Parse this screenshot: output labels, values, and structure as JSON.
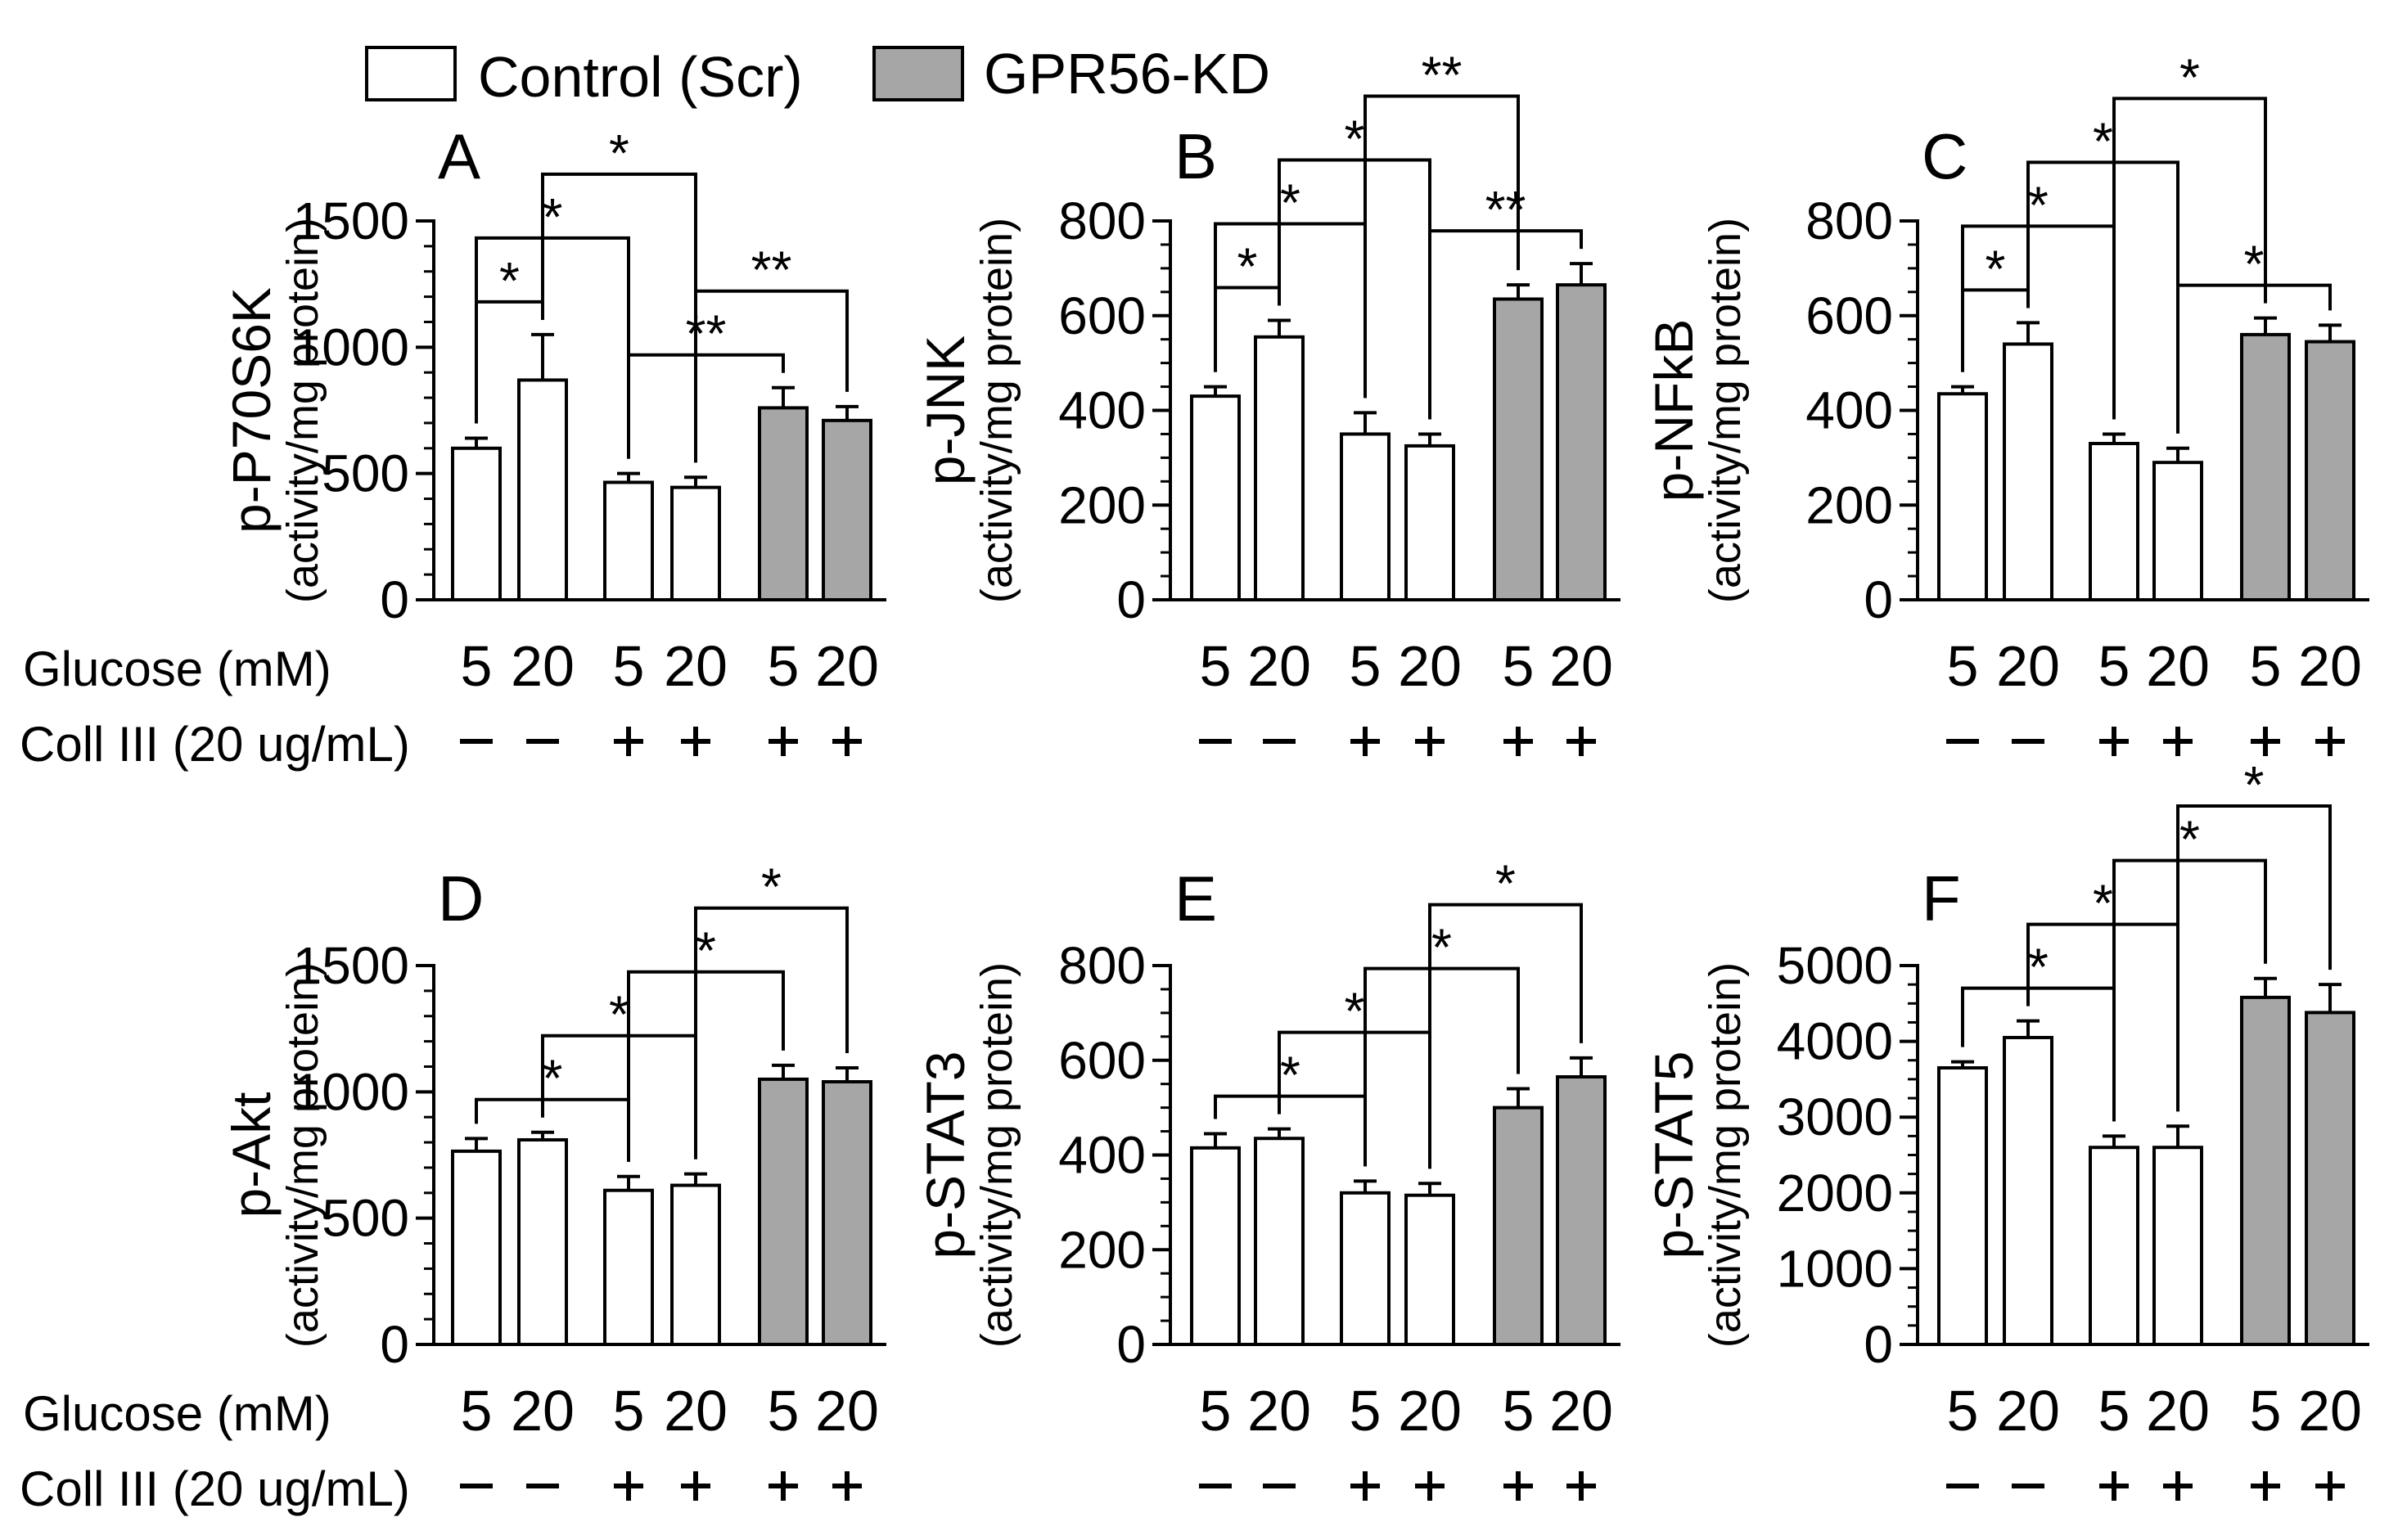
{
  "legend": [
    {
      "label": "Control (Scr)",
      "color": "#ffffff"
    },
    {
      "label": "GPR56-KD",
      "color": "#a6a6a6"
    }
  ],
  "row_labels": {
    "glucose": "Glucose (mM)",
    "coll": "Coll III (20 ug/mL)"
  },
  "chart_data": [
    {
      "type": "bar",
      "panel": "A",
      "ylabel": "p-P70S6K",
      "ylabel2": "(activity/mg protein)",
      "ylim": [
        0,
        1500
      ],
      "ticks": [
        0,
        500,
        1000,
        1500
      ],
      "minor": 100,
      "glucose": [
        "5",
        "20",
        "5",
        "20",
        "5",
        "20"
      ],
      "coll": [
        "–",
        "–",
        "+",
        "+",
        "+",
        "+"
      ],
      "values": [
        600,
        870,
        465,
        445,
        760,
        710
      ],
      "errors": [
        40,
        180,
        35,
        40,
        80,
        55
      ],
      "series": [
        "Control (Scr)",
        "Control (Scr)",
        "Control (Scr)",
        "Control (Scr)",
        "GPR56-KD",
        "GPR56-KD"
      ],
      "sig": [
        {
          "from": 0,
          "to": 1,
          "label": "*"
        },
        {
          "from": 0,
          "to": 2,
          "label": "*"
        },
        {
          "from": 1,
          "to": 3,
          "label": "*"
        },
        {
          "from": 2,
          "to": 4,
          "label": "**"
        },
        {
          "from": 3,
          "to": 5,
          "label": "**"
        }
      ]
    },
    {
      "type": "bar",
      "panel": "B",
      "ylabel": "p-JNK",
      "ylabel2": "(activity/mg protein)",
      "ylim": [
        0,
        800
      ],
      "ticks": [
        0,
        200,
        400,
        600,
        800
      ],
      "minor": 50,
      "glucose": [
        "5",
        "20",
        "5",
        "20",
        "5",
        "20"
      ],
      "coll": [
        "–",
        "–",
        "+",
        "+",
        "+",
        "+"
      ],
      "values": [
        430,
        555,
        350,
        325,
        635,
        665
      ],
      "errors": [
        20,
        35,
        45,
        25,
        30,
        45
      ],
      "series": [
        "Control (Scr)",
        "Control (Scr)",
        "Control (Scr)",
        "Control (Scr)",
        "GPR56-KD",
        "GPR56-KD"
      ],
      "sig": [
        {
          "from": 0,
          "to": 1,
          "label": "*"
        },
        {
          "from": 0,
          "to": 2,
          "label": "*"
        },
        {
          "from": 1,
          "to": 3,
          "label": "*"
        },
        {
          "from": 3,
          "to": 5,
          "label": "**"
        },
        {
          "from": 2,
          "to": 4,
          "label": "**"
        }
      ]
    },
    {
      "type": "bar",
      "panel": "C",
      "ylabel": "p-NFkB",
      "ylabel2": "(activity/mg protein)",
      "ylim": [
        0,
        800
      ],
      "ticks": [
        0,
        200,
        400,
        600,
        800
      ],
      "minor": 50,
      "glucose": [
        "5",
        "20",
        "5",
        "20",
        "5",
        "20"
      ],
      "coll": [
        "–",
        "–",
        "+",
        "+",
        "+",
        "+"
      ],
      "values": [
        435,
        540,
        330,
        290,
        560,
        545
      ],
      "errors": [
        15,
        45,
        20,
        30,
        35,
        35
      ],
      "series": [
        "Control (Scr)",
        "Control (Scr)",
        "Control (Scr)",
        "Control (Scr)",
        "GPR56-KD",
        "GPR56-KD"
      ],
      "sig": [
        {
          "from": 0,
          "to": 1,
          "label": "*"
        },
        {
          "from": 0,
          "to": 2,
          "label": "*"
        },
        {
          "from": 1,
          "to": 3,
          "label": "*"
        },
        {
          "from": 2,
          "to": 4,
          "label": "*"
        },
        {
          "from": 3,
          "to": 5,
          "label": "*"
        }
      ]
    },
    {
      "type": "bar",
      "panel": "D",
      "ylabel": "p-Akt",
      "ylabel2": "(activity/mg protein)",
      "ylim": [
        0,
        1500
      ],
      "ticks": [
        0,
        500,
        1000,
        1500
      ],
      "minor": 100,
      "glucose": [
        "5",
        "20",
        "5",
        "20",
        "5",
        "20"
      ],
      "coll": [
        "–",
        "–",
        "+",
        "+",
        "+",
        "+"
      ],
      "values": [
        765,
        810,
        610,
        630,
        1050,
        1040
      ],
      "errors": [
        50,
        30,
        55,
        45,
        55,
        55
      ],
      "series": [
        "Control (Scr)",
        "Control (Scr)",
        "Control (Scr)",
        "Control (Scr)",
        "GPR56-KD",
        "GPR56-KD"
      ],
      "sig": [
        {
          "from": 0,
          "to": 2,
          "label": "*"
        },
        {
          "from": 1,
          "to": 3,
          "label": "*"
        },
        {
          "from": 2,
          "to": 4,
          "label": "*"
        },
        {
          "from": 3,
          "to": 5,
          "label": "*"
        }
      ]
    },
    {
      "type": "bar",
      "panel": "E",
      "ylabel": "p-STAT3",
      "ylabel2": "(activity/mg protein)",
      "ylim": [
        0,
        800
      ],
      "ticks": [
        0,
        200,
        400,
        600,
        800
      ],
      "minor": 50,
      "glucose": [
        "5",
        "20",
        "5",
        "20",
        "5",
        "20"
      ],
      "coll": [
        "–",
        "–",
        "+",
        "+",
        "+",
        "+"
      ],
      "values": [
        415,
        435,
        320,
        315,
        500,
        565
      ],
      "errors": [
        30,
        20,
        25,
        25,
        40,
        40
      ],
      "series": [
        "Control (Scr)",
        "Control (Scr)",
        "Control (Scr)",
        "Control (Scr)",
        "GPR56-KD",
        "GPR56-KD"
      ],
      "sig": [
        {
          "from": 0,
          "to": 2,
          "label": "*"
        },
        {
          "from": 1,
          "to": 3,
          "label": "*"
        },
        {
          "from": 2,
          "to": 4,
          "label": "*"
        },
        {
          "from": 3,
          "to": 5,
          "label": "*"
        }
      ]
    },
    {
      "type": "bar",
      "panel": "F",
      "ylabel": "p-STAT5",
      "ylabel2": "(activity/mg protein)",
      "ylim": [
        0,
        5000
      ],
      "ticks": [
        0,
        1000,
        2000,
        3000,
        4000,
        5000
      ],
      "minor": 250,
      "glucose": [
        "5",
        "20",
        "5",
        "20",
        "5",
        "20"
      ],
      "coll": [
        "–",
        "–",
        "+",
        "+",
        "+",
        "+"
      ],
      "values": [
        3650,
        4050,
        2600,
        2600,
        4580,
        4380
      ],
      "errors": [
        80,
        220,
        150,
        280,
        250,
        370
      ],
      "series": [
        "Control (Scr)",
        "Control (Scr)",
        "Control (Scr)",
        "Control (Scr)",
        "GPR56-KD",
        "GPR56-KD"
      ],
      "sig": [
        {
          "from": 0,
          "to": 2,
          "label": "*"
        },
        {
          "from": 1,
          "to": 3,
          "label": "*"
        },
        {
          "from": 2,
          "to": 4,
          "label": "*"
        },
        {
          "from": 3,
          "to": 5,
          "label": "*"
        }
      ]
    }
  ]
}
